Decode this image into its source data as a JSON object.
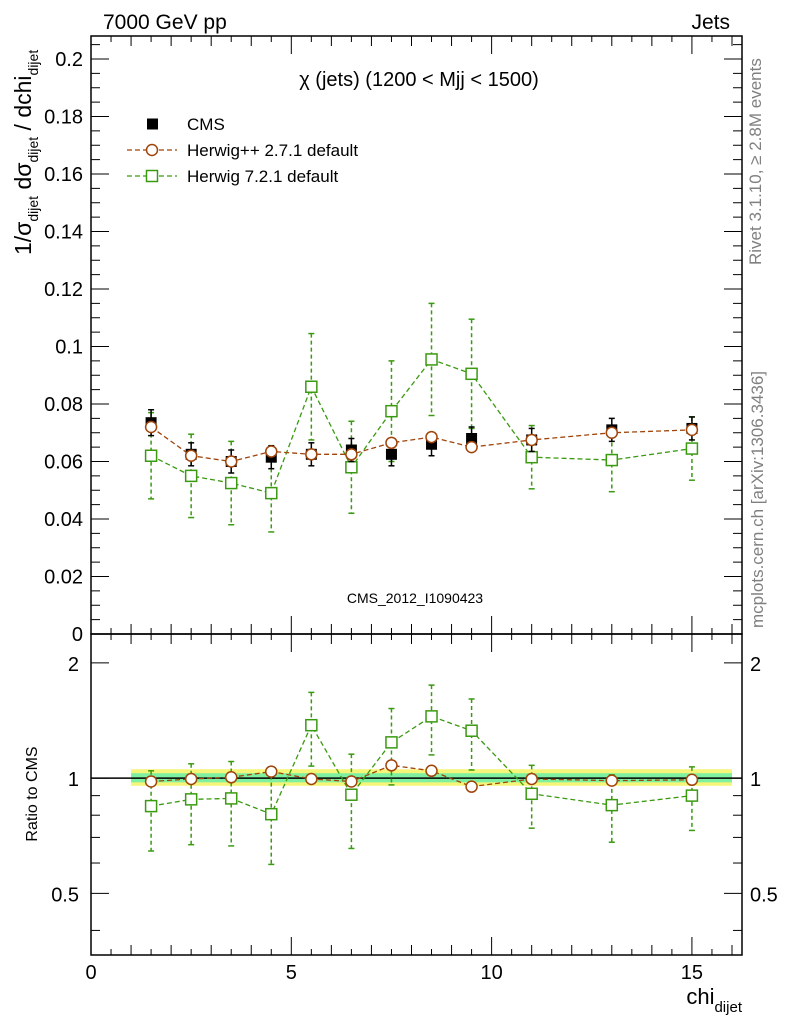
{
  "header": {
    "left": "7000 GeV pp",
    "right": "Jets"
  },
  "side_labels": {
    "upper": "Rivet 3.1.10, ≥ 2.8M events",
    "lower": "mcplots.cern.ch [arXiv:1306.3436]"
  },
  "watermark": "CMS_2012_I1090423",
  "colors": {
    "cms": "#000000",
    "herwigpp": "#a0440a",
    "herwig7": "#3a9a10",
    "band_outer": "#f5f57a",
    "band_inner": "#7ff0a0"
  },
  "chart_data": [
    {
      "type": "scatter",
      "title": "χ (jets) (1200 < Mjj < 1500)",
      "xlabel": "chi_dijet",
      "ylabel": "1/σ_dijet dσ_dijet / dchi_dijet",
      "xlim": [
        0,
        16.25
      ],
      "ylim": [
        0,
        0.208
      ],
      "yticks": [
        "0",
        "0.02",
        "0.04",
        "0.06",
        "0.08",
        "0.1",
        "0.12",
        "0.14",
        "0.16",
        "0.18",
        "0.2"
      ],
      "legend_position": "top-left",
      "series": [
        {
          "name": "CMS",
          "x": [
            1.5,
            2.5,
            3.5,
            4.5,
            5.5,
            6.5,
            7.5,
            8.5,
            9.5,
            11,
            13,
            15
          ],
          "y": [
            0.0735,
            0.0625,
            0.06,
            0.0615,
            0.0625,
            0.064,
            0.0625,
            0.066,
            0.068,
            0.0675,
            0.071,
            0.0715
          ],
          "err": [
            0.0045,
            0.004,
            0.004,
            0.004,
            0.004,
            0.004,
            0.004,
            0.004,
            0.004,
            0.004,
            0.004,
            0.004
          ]
        },
        {
          "name": "Herwig++ 2.7.1 default",
          "x": [
            1.5,
            2.5,
            3.5,
            4.5,
            5.5,
            6.5,
            7.5,
            8.5,
            9.5,
            11,
            13,
            15
          ],
          "y": [
            0.072,
            0.062,
            0.06,
            0.0635,
            0.0625,
            0.0625,
            0.0665,
            0.0685,
            0.065,
            0.0675,
            0.07,
            0.071
          ],
          "err": [
            0.001,
            0.001,
            0.001,
            0.001,
            0.001,
            0.001,
            0.001,
            0.001,
            0.001,
            0.001,
            0.001,
            0.001
          ]
        },
        {
          "name": "Herwig 7.2.1 default",
          "x": [
            1.5,
            2.5,
            3.5,
            4.5,
            5.5,
            6.5,
            7.5,
            8.5,
            9.5,
            11,
            13,
            15
          ],
          "y": [
            0.062,
            0.055,
            0.0525,
            0.049,
            0.086,
            0.058,
            0.0775,
            0.0955,
            0.0905,
            0.0615,
            0.0605,
            0.0645
          ],
          "err": [
            0.015,
            0.0145,
            0.0145,
            0.0135,
            0.0185,
            0.016,
            0.0175,
            0.0195,
            0.019,
            0.011,
            0.011,
            0.011
          ]
        }
      ]
    },
    {
      "type": "scatter",
      "title": "",
      "xlabel": "chi_dijet",
      "ylabel": "Ratio to CMS",
      "xlim": [
        0,
        16.25
      ],
      "ylim": [
        0.345,
        2.38
      ],
      "y_scale": "log",
      "yticks": [
        "0.5",
        "1",
        "2"
      ],
      "xticks": [
        "0",
        "5",
        "10",
        "15"
      ],
      "band_range": [
        1,
        16
      ],
      "band": {
        "outer": [
          0.955,
          1.055
        ],
        "inner": [
          0.975,
          1.03
        ]
      },
      "series": [
        {
          "name": "Herwig++ 2.7.1 default",
          "x": [
            1.5,
            2.5,
            3.5,
            4.5,
            5.5,
            6.5,
            7.5,
            8.5,
            9.5,
            11,
            13,
            15
          ],
          "y": [
            0.98,
            0.995,
            1.005,
            1.04,
            0.995,
            0.98,
            1.08,
            1.045,
            0.95,
            0.995,
            0.985,
            0.99
          ],
          "err": [
            0.015,
            0.015,
            0.015,
            0.015,
            0.015,
            0.015,
            0.015,
            0.015,
            0.015,
            0.015,
            0.015,
            0.015
          ]
        },
        {
          "name": "Herwig 7.2.1 default",
          "x": [
            1.5,
            2.5,
            3.5,
            4.5,
            5.5,
            6.5,
            7.5,
            8.5,
            9.5,
            11,
            13,
            15
          ],
          "y": [
            0.845,
            0.88,
            0.885,
            0.805,
            1.375,
            0.905,
            1.24,
            1.45,
            1.33,
            0.91,
            0.85,
            0.9
          ],
          "err": [
            0.2,
            0.21,
            0.22,
            0.21,
            0.3,
            0.25,
            0.28,
            0.3,
            0.28,
            0.17,
            0.17,
            0.17
          ]
        }
      ]
    }
  ]
}
